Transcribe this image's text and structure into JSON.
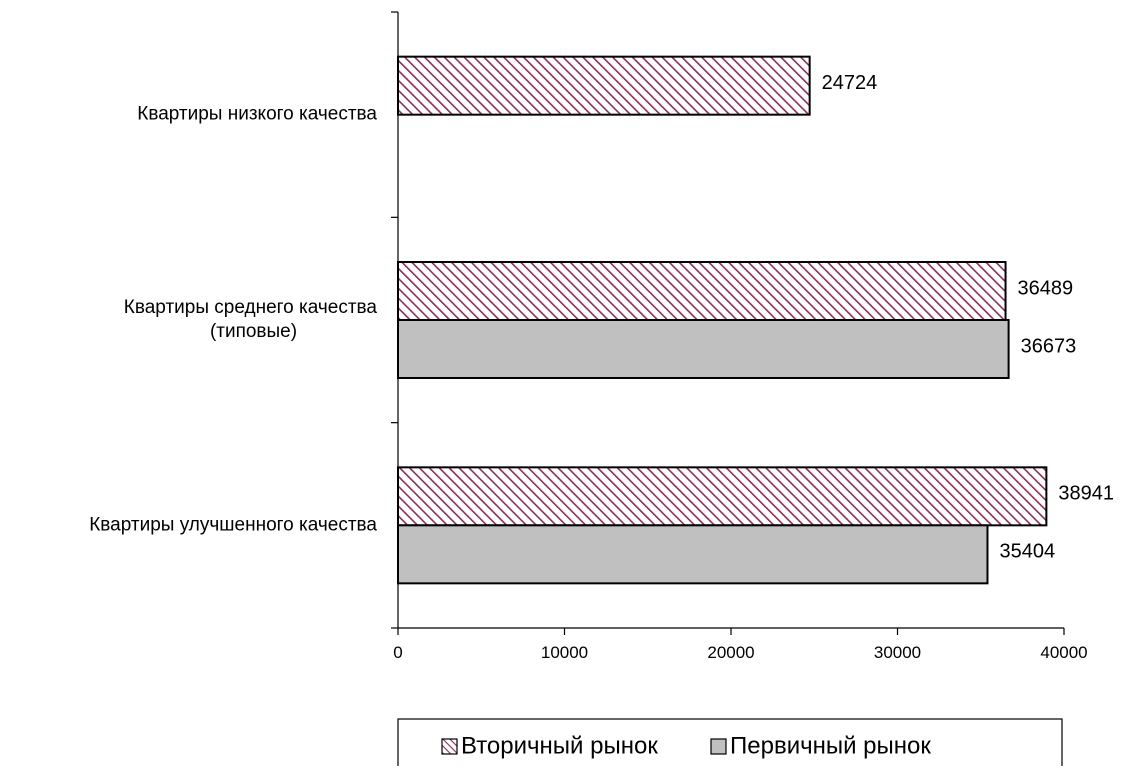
{
  "chart_data": {
    "type": "bar",
    "orientation": "horizontal",
    "categories": [
      {
        "lines": [
          "Квартиры низкого качества"
        ]
      },
      {
        "lines": [
          "Квартиры среднего качества",
          "(типовые)"
        ]
      },
      {
        "lines": [
          "Квартиры улучшенного качества"
        ]
      }
    ],
    "series": [
      {
        "name": "Вторичный рынок",
        "values": [
          24724,
          36489,
          38941
        ],
        "pattern": "hatch"
      },
      {
        "name": "Первичный рынок",
        "values": [
          null,
          36673,
          35404
        ],
        "pattern": "solid"
      }
    ],
    "xlim": [
      0,
      40000
    ],
    "xticks": [
      "0",
      "10000",
      "20000",
      "30000",
      "40000"
    ],
    "grid": false,
    "legend": "bottom",
    "colors": {
      "hatch_stroke": "#8b2e5a",
      "solid_fill": "#c0c0c0",
      "bar_border": "#000000"
    }
  }
}
